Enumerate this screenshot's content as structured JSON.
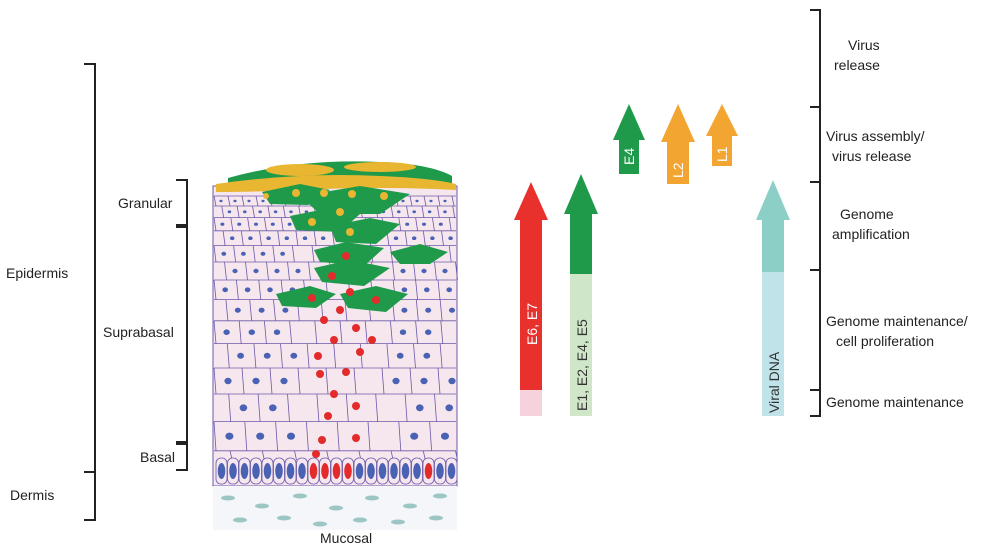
{
  "layers": {
    "epidermis": "Epidermis",
    "dermis": "Dermis",
    "granular": "Granular",
    "suprabasal": "Suprabasal",
    "basal": "Basal",
    "mucosal": "Mucosal"
  },
  "genes": {
    "e6e7": "E6, E7",
    "early": "E1, E2, E4, E5",
    "e4": "E4",
    "l2": "L2",
    "l1": "L1",
    "viral_dna": "Viral DNA"
  },
  "stages": {
    "virus_release": [
      "Virus",
      "release"
    ],
    "assembly": [
      "Virus assembly/",
      "virus release"
    ],
    "amplification": [
      "Genome",
      "amplification"
    ],
    "maintenance_prolif": [
      "Genome maintenance/",
      "cell proliferation"
    ],
    "maintenance": [
      "Genome maintenance"
    ]
  },
  "colors": {
    "red": "#e8302c",
    "red_pale": "#f6d3dc",
    "green": "#1f9a4a",
    "green_pale": "#cfe6c8",
    "orange": "#f3a531",
    "teal": "#8ccfc6",
    "teal_pale": "#bfe3e8",
    "cell_fill": "#f6e6ee",
    "cell_line": "#6a5aa8",
    "nucleus": "#4a62b4",
    "infected": "#e32b2b",
    "koilocyte": "#2a9a4a",
    "yellow": "#e8b630"
  }
}
